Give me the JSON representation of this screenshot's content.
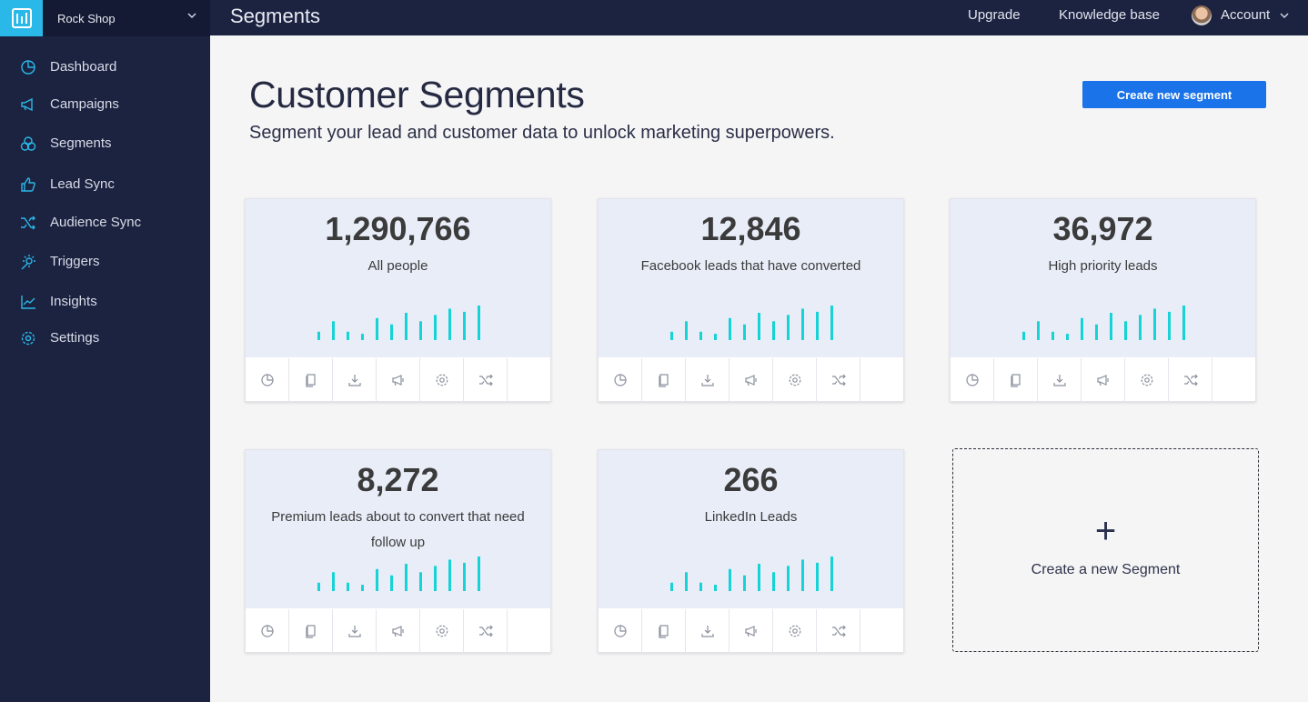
{
  "app": {
    "shop_name": "Rock Shop",
    "page_title": "Segments",
    "accent_color": "#2ab8e8",
    "brand_button_color": "#1a73e8"
  },
  "topbar": {
    "upgrade": "Upgrade",
    "knowledge_base": "Knowledge base",
    "account": "Account"
  },
  "sidebar": {
    "items": [
      {
        "label": "Dashboard",
        "icon": "pie-chart-icon"
      },
      {
        "label": "Campaigns",
        "icon": "megaphone-icon"
      },
      {
        "label": "Segments",
        "icon": "segments-icon"
      },
      {
        "label": "Lead Sync",
        "icon": "thumbs-up-icon"
      },
      {
        "label": "Audience Sync",
        "icon": "shuffle-icon"
      },
      {
        "label": "Triggers",
        "icon": "triggers-icon"
      },
      {
        "label": "Insights",
        "icon": "line-chart-icon"
      },
      {
        "label": "Settings",
        "icon": "gear-icon"
      }
    ]
  },
  "main": {
    "title": "Customer Segments",
    "subtitle": "Segment your lead and customer data to unlock marketing superpowers.",
    "create_button": "Create new segment"
  },
  "segments": [
    {
      "count": "1,290,766",
      "name": "All people"
    },
    {
      "count": "12,846",
      "name": "Facebook leads that have converted"
    },
    {
      "count": "36,972",
      "name": "High priority leads"
    },
    {
      "count": "8,272",
      "name": "Premium leads about to convert that need follow up"
    },
    {
      "count": "266",
      "name": "LinkedIn Leads"
    }
  ],
  "sparkline_values": [
    8,
    18,
    8,
    6,
    21,
    15,
    26,
    18,
    24,
    30,
    27,
    33
  ],
  "card_actions": [
    "pie-chart-icon",
    "copy-icon",
    "download-icon",
    "megaphone-icon",
    "gear-icon",
    "shuffle-icon"
  ],
  "new_segment": {
    "plus": "+",
    "label": "Create a new Segment"
  }
}
